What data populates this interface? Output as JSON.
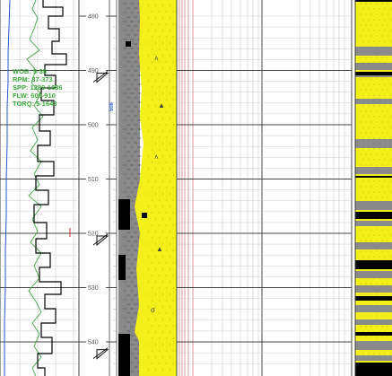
{
  "depth_track": {
    "start": 480,
    "end": 545,
    "ticks": [
      480,
      490,
      500,
      510,
      520,
      530,
      540
    ]
  },
  "drilling_parameters": {
    "lines": [
      "WOB: 5-35",
      "RPM: 37-373",
      "SPP: 1289-1886",
      "FLW: 609-910",
      "TORQ: 5-1643"
    ]
  },
  "md_label": "508",
  "colors": {
    "gamma_curve": "#2255cc",
    "rop_curve": "#2e9a2e",
    "step_curve": "#000000",
    "sandstone": "#f2ef1a",
    "shale": "#8a8a8a",
    "coal": "#000000",
    "grid_major": "#444444",
    "grid_minor": "#bbbbbb",
    "red_grid": "#c86a6a",
    "param_text": "#3aa63a"
  },
  "icons": {
    "bit_marker": "bit-triangle-icon"
  }
}
